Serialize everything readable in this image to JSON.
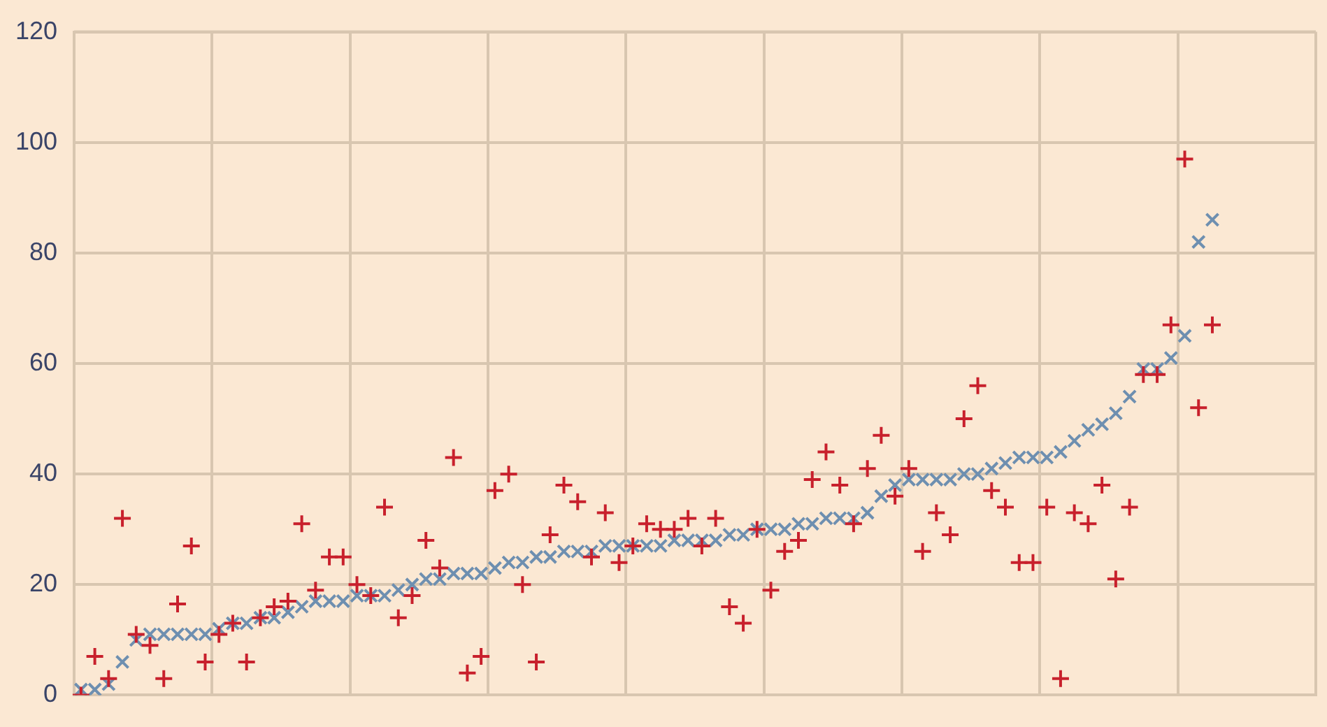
{
  "chart_data": {
    "type": "scatter",
    "categories": [
      null,
      null,
      null,
      null,
      null,
      null,
      null,
      null,
      null,
      null,
      null,
      null,
      null,
      null,
      null,
      null,
      null,
      null,
      null,
      null,
      null,
      null,
      null,
      null,
      null,
      null,
      null,
      null,
      null,
      null,
      null,
      null,
      null,
      null,
      null,
      null,
      null,
      null,
      null,
      null,
      null,
      null,
      null,
      null,
      null,
      null,
      null,
      null,
      null,
      null,
      null,
      null,
      null,
      null,
      null,
      null,
      null,
      null,
      null,
      null,
      null,
      null,
      null,
      null,
      null,
      null,
      null,
      null,
      null,
      null,
      null,
      null,
      null,
      null,
      null,
      null,
      null,
      null,
      null,
      null,
      null,
      null,
      null,
      null,
      null,
      null,
      null,
      null,
      null,
      null
    ],
    "series": [
      {
        "color": "#c8202c",
        "marker": "plus",
        "values": [
          0,
          7,
          3,
          32,
          11,
          9,
          3,
          16.5,
          27,
          6,
          11,
          13,
          6,
          14,
          16,
          17,
          31,
          19,
          25,
          25,
          20,
          18,
          34,
          14,
          18,
          28,
          23,
          43,
          4,
          7,
          37,
          40,
          20,
          6,
          29,
          38,
          35,
          25,
          33,
          24,
          27,
          31,
          30,
          30,
          32,
          27,
          32,
          16,
          13,
          30,
          19,
          26,
          28,
          39,
          44,
          38,
          31,
          41,
          47,
          36,
          41,
          26,
          33,
          29,
          50,
          56,
          37,
          34,
          24,
          24,
          34,
          3,
          33,
          31,
          38,
          21,
          34,
          58,
          58,
          67,
          97,
          52,
          67,
          null,
          null,
          null,
          null,
          null,
          null,
          null
        ]
      },
      {
        "color": "#6e8fb0",
        "marker": "cross",
        "values": [
          1,
          1,
          2,
          6,
          10,
          11,
          11,
          11,
          11,
          11,
          12,
          13,
          13,
          14,
          14,
          15,
          16,
          17,
          17,
          17,
          18,
          18,
          18,
          19,
          20,
          21,
          21,
          22,
          22,
          22,
          23,
          24,
          24,
          25,
          25,
          26,
          26,
          26,
          27,
          27,
          27,
          27,
          27,
          28,
          28,
          28,
          28,
          29,
          29,
          30,
          30,
          30,
          31,
          31,
          32,
          32,
          32,
          33,
          36,
          38,
          39,
          39,
          39,
          39,
          40,
          40,
          41,
          42,
          43,
          43,
          43,
          44,
          46,
          48,
          49,
          51,
          54,
          59,
          59,
          61,
          65,
          82,
          86,
          null,
          null,
          null,
          null,
          null,
          null,
          null
        ]
      }
    ],
    "ylim": [
      0,
      120
    ],
    "yticks": [
      0,
      20,
      40,
      60,
      80,
      100,
      120
    ],
    "grid": true,
    "tick_labels": "y",
    "legend": false
  }
}
